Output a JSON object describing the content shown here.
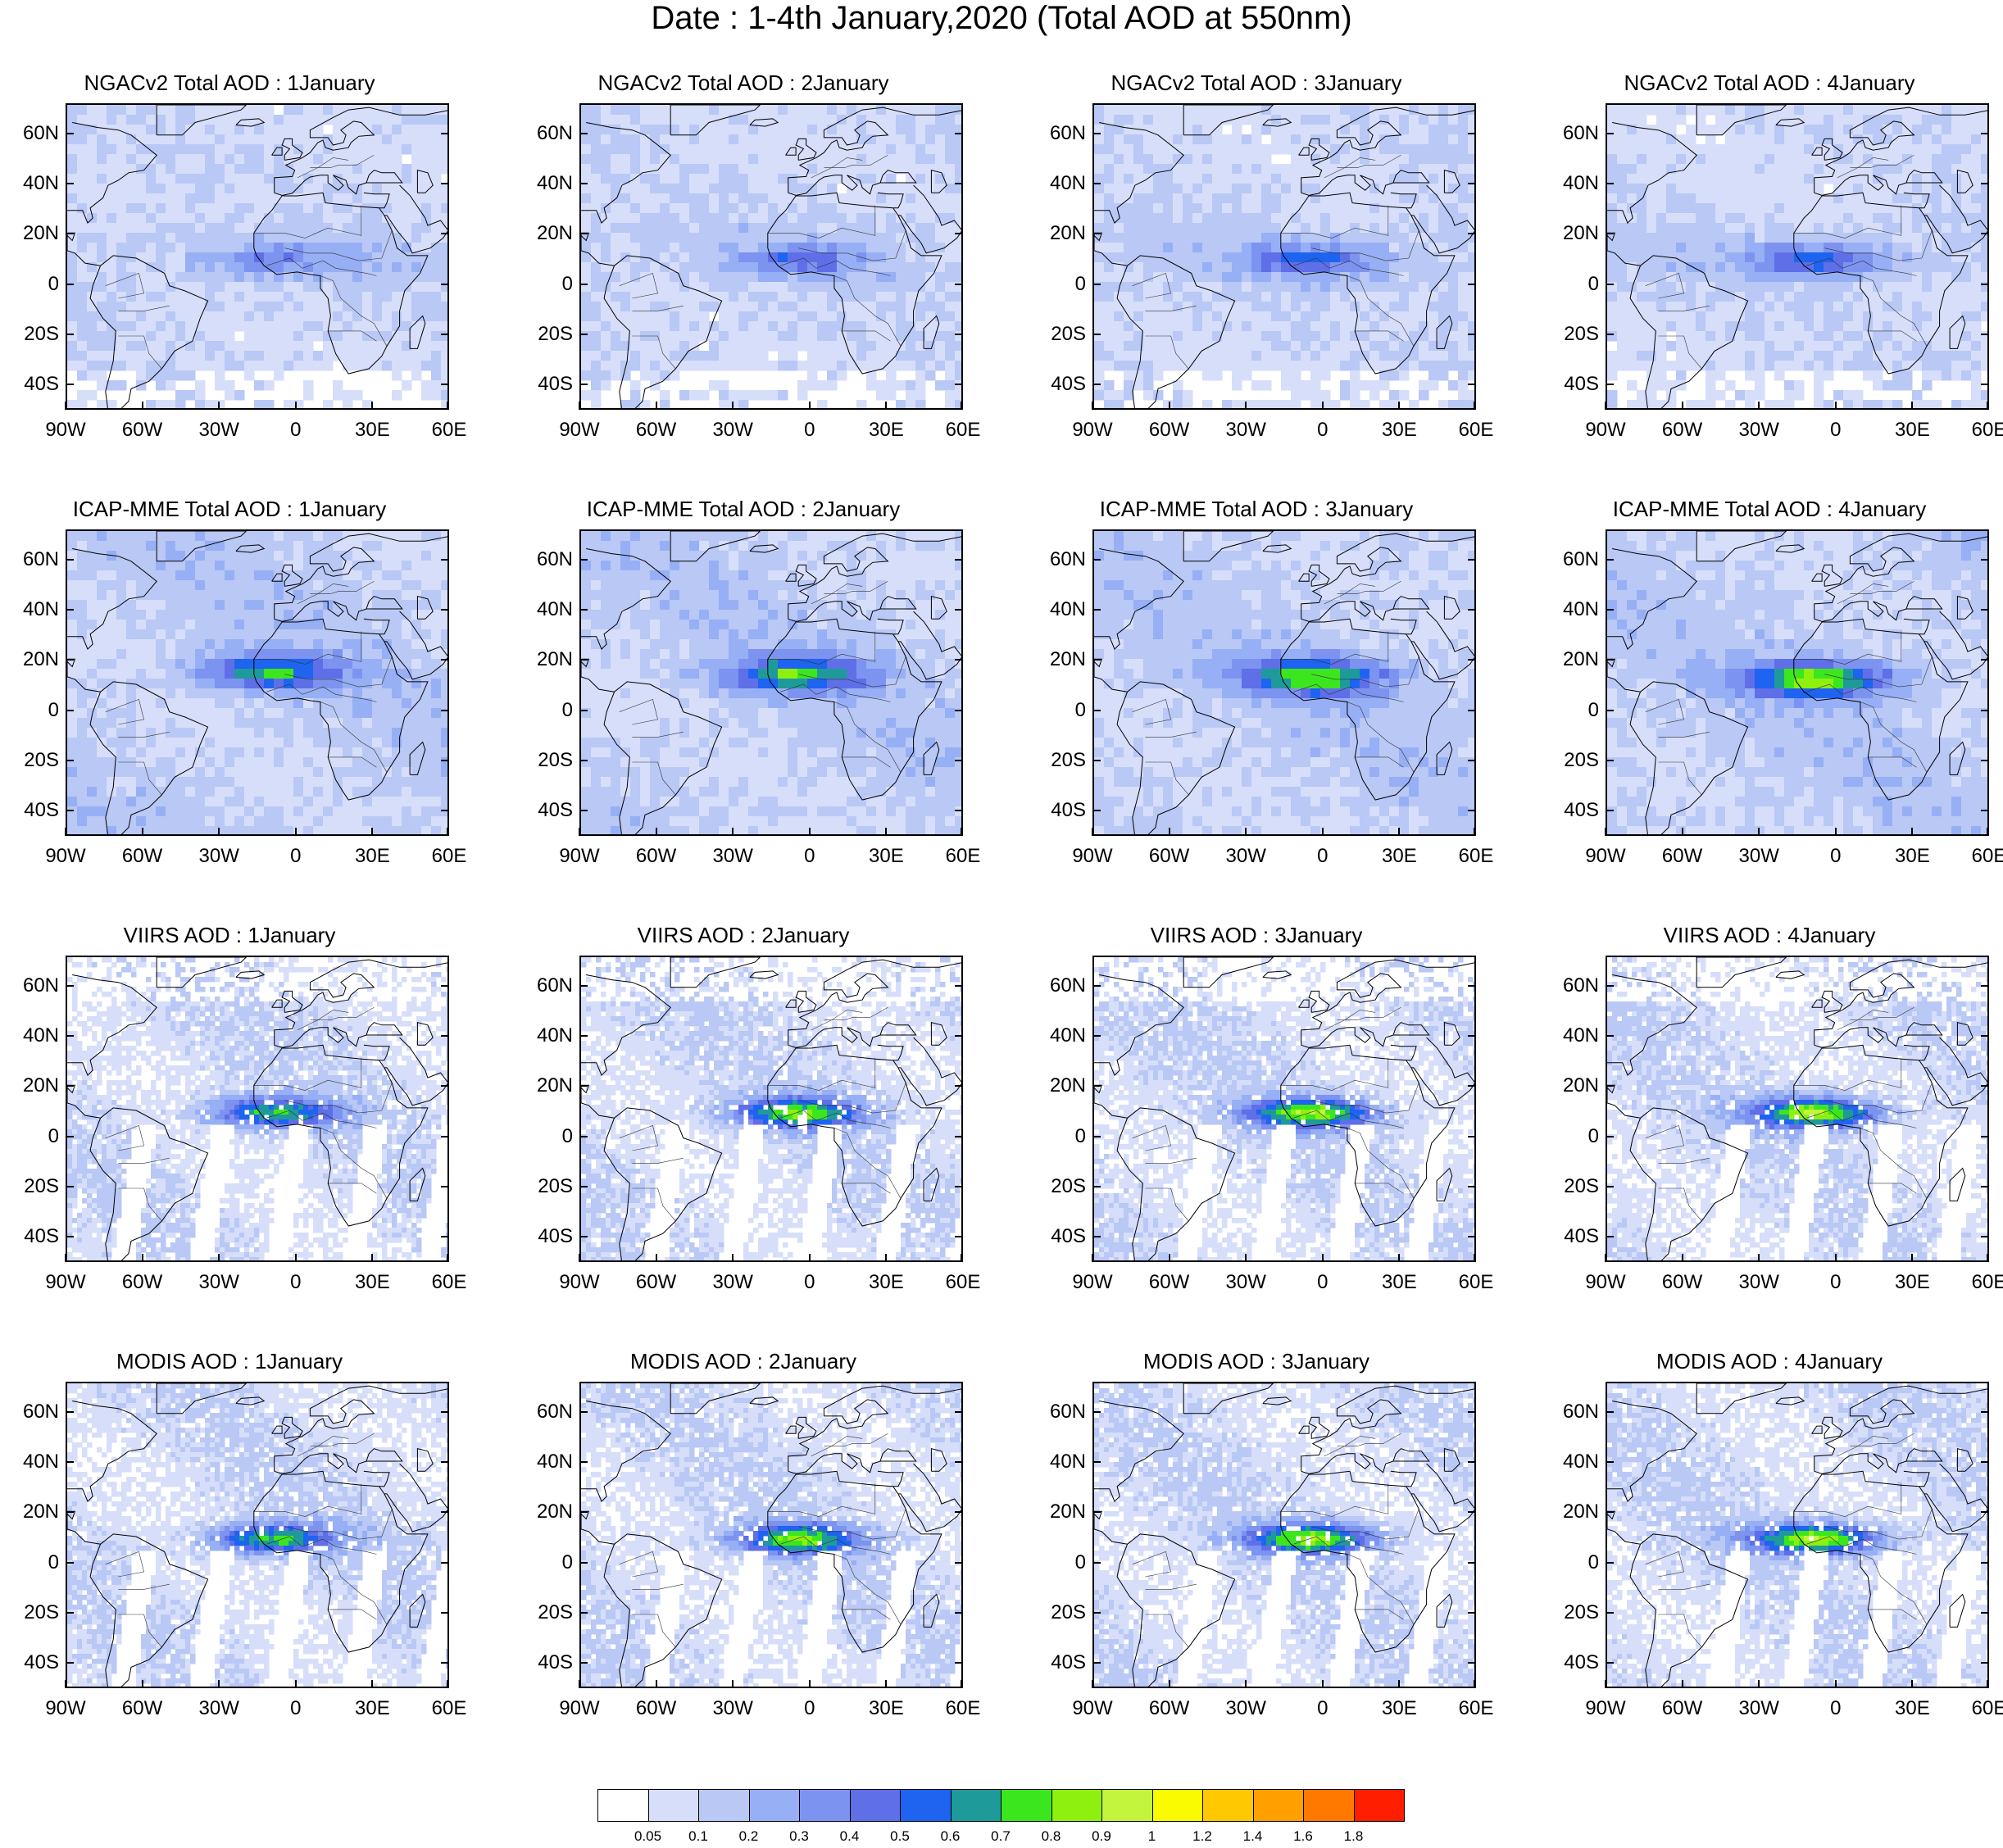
{
  "title": "Date : 1-4th January,2020 (Total AOD at 550nm)",
  "panels": [
    [
      "NGACv2 Total AOD : 1January",
      "NGACv2 Total AOD : 2January",
      "NGACv2 Total AOD : 3January",
      "NGACv2 Total AOD : 4January"
    ],
    [
      "ICAP-MME Total AOD : 1January",
      "ICAP-MME Total AOD : 2January",
      "ICAP-MME Total AOD : 3January",
      "ICAP-MME Total AOD : 4January"
    ],
    [
      "VIIRS AOD : 1January",
      "VIIRS AOD : 2January",
      "VIIRS AOD : 3January",
      "VIIRS AOD : 4January"
    ],
    [
      "MODIS AOD : 1January",
      "MODIS AOD : 2January",
      "MODIS AOD : 3January",
      "MODIS AOD : 4January"
    ]
  ],
  "lat_labels": [
    "60N",
    "40N",
    "20N",
    "0",
    "20S",
    "40S"
  ],
  "lon_labels": [
    "90W",
    "60W",
    "30W",
    "0",
    "30E",
    "60E"
  ],
  "colorbar": {
    "labels": [
      "0.05",
      "0.1",
      "0.2",
      "0.3",
      "0.4",
      "0.5",
      "0.6",
      "0.7",
      "0.8",
      "0.9",
      "1",
      "1.2",
      "1.4",
      "1.6",
      "1.8"
    ],
    "colors": [
      "#ffffff",
      "#d6defa",
      "#b9c8f5",
      "#97aff5",
      "#7d93f0",
      "#5f6fe8",
      "#1e64f0",
      "#1f9a9a",
      "#3ce61e",
      "#8ef00f",
      "#c3f53c",
      "#fafa00",
      "#ffc800",
      "#ffa000",
      "#ff7800",
      "#ff1e00"
    ]
  }
}
